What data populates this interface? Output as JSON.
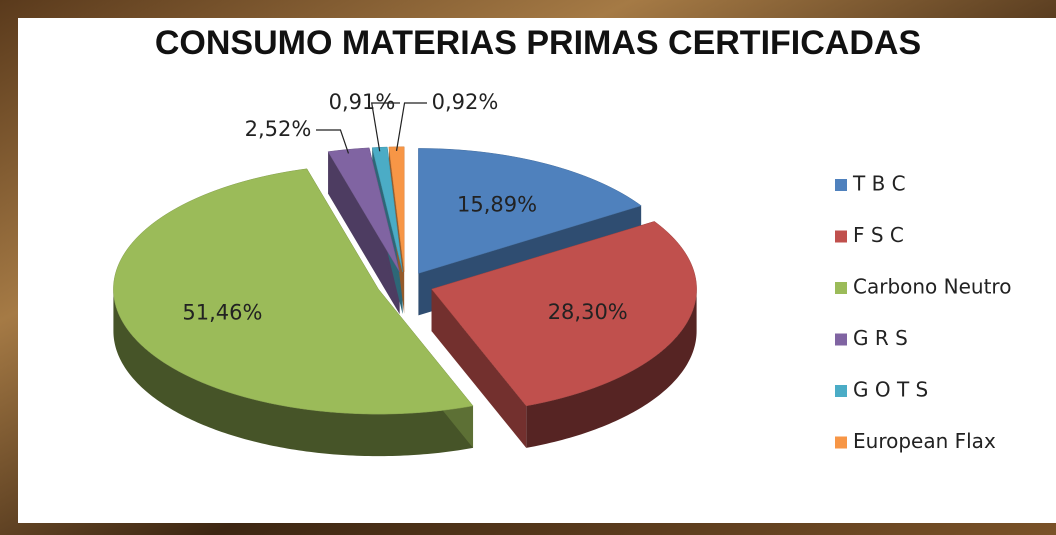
{
  "chart_data": {
    "type": "pie",
    "title": "CONSUMO MATERIAS PRIMAS CERTIFICADAS",
    "categories": [
      "T B C",
      "F S C",
      "Carbono Neutro",
      "G R S",
      "G O T S",
      "European Flax"
    ],
    "values": [
      15.89,
      28.3,
      51.46,
      2.52,
      0.91,
      0.92
    ],
    "value_labels": [
      "15,89%",
      "28,30%",
      "51,46%",
      "2,52%",
      "0,91%",
      "0,92%"
    ],
    "colors": [
      "#4f81bd",
      "#c0504d",
      "#9bbb59",
      "#8064a2",
      "#4bacc6",
      "#f79646"
    ],
    "legend": "right"
  }
}
